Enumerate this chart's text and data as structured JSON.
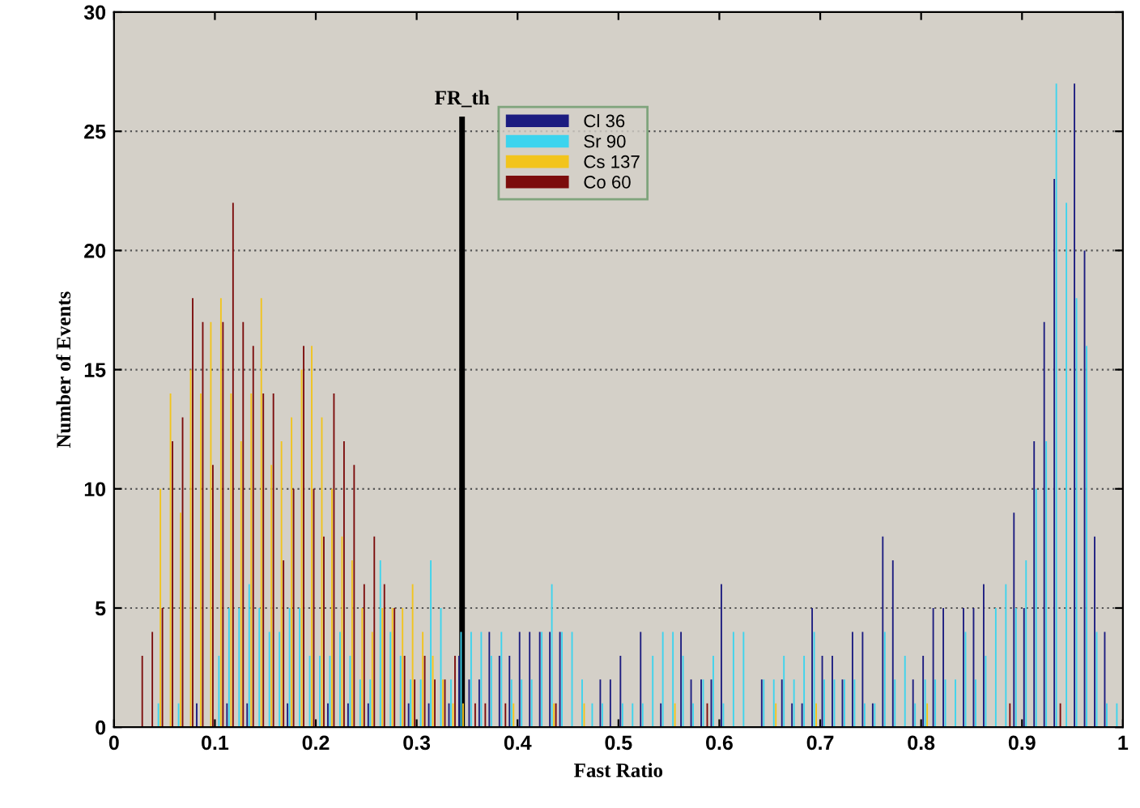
{
  "chart_data": {
    "type": "histogram",
    "xlabel": "Fast Ratio",
    "ylabel": "Number of Events",
    "bins": [
      0,
      0.01,
      0.02,
      0.03,
      0.04,
      0.05,
      0.06,
      0.07,
      0.08,
      0.09,
      0.1,
      0.11,
      0.12,
      0.13,
      0.14,
      0.15,
      0.16,
      0.17,
      0.18,
      0.19,
      0.2,
      0.21,
      0.22,
      0.23,
      0.24,
      0.25,
      0.26,
      0.27,
      0.28,
      0.29,
      0.3,
      0.31,
      0.32,
      0.33,
      0.34,
      0.35,
      0.36,
      0.37,
      0.38,
      0.39,
      0.4,
      0.41,
      0.42,
      0.43,
      0.44,
      0.45,
      0.46,
      0.47,
      0.48,
      0.49,
      0.5,
      0.51,
      0.52,
      0.53,
      0.54,
      0.55,
      0.56,
      0.57,
      0.58,
      0.59,
      0.6,
      0.61,
      0.62,
      0.63,
      0.64,
      0.65,
      0.66,
      0.67,
      0.68,
      0.69,
      0.7,
      0.71,
      0.72,
      0.73,
      0.74,
      0.75,
      0.76,
      0.77,
      0.78,
      0.79,
      0.8,
      0.81,
      0.82,
      0.83,
      0.84,
      0.85,
      0.86,
      0.87,
      0.88,
      0.89,
      0.9,
      0.91,
      0.92,
      0.93,
      0.94,
      0.95,
      0.96,
      0.97,
      0.98,
      0.99,
      1
    ],
    "series": [
      {
        "name": "Cl 36",
        "color": "#1c1c80",
        "values": [
          0,
          0,
          0,
          0,
          0,
          0,
          0,
          0,
          1,
          0,
          0,
          1,
          0,
          1,
          0,
          0,
          0,
          1,
          0,
          0,
          0,
          1,
          0,
          1,
          0,
          1,
          0,
          0,
          0,
          1,
          0,
          1,
          0,
          1,
          3,
          2,
          2,
          4,
          3,
          3,
          4,
          4,
          4,
          4,
          4,
          0,
          0,
          0,
          2,
          2,
          3,
          0,
          4,
          0,
          1,
          0,
          4,
          2,
          2,
          2,
          6,
          0,
          0,
          0,
          2,
          0,
          2,
          1,
          1,
          5,
          3,
          3,
          2,
          4,
          4,
          1,
          8,
          7,
          0,
          2,
          3,
          5,
          5,
          0,
          5,
          5,
          6,
          0,
          0,
          9,
          5,
          12,
          17,
          23,
          0,
          27,
          20,
          8,
          4,
          0
        ]
      },
      {
        "name": "Sr 90",
        "color": "#3cd4ee",
        "values": [
          0,
          0,
          0,
          0,
          1,
          0,
          1,
          0,
          0,
          0,
          3,
          5,
          5,
          6,
          5,
          4,
          4,
          5,
          5,
          3,
          3,
          3,
          4,
          3,
          2,
          2,
          7,
          4,
          3,
          2,
          2,
          7,
          5,
          2,
          4,
          4,
          4,
          3,
          4,
          2,
          2,
          2,
          4,
          6,
          4,
          4,
          2,
          1,
          1,
          0,
          1,
          1,
          1,
          3,
          4,
          4,
          3,
          1,
          2,
          3,
          1,
          4,
          4,
          0,
          2,
          2,
          3,
          2,
          3,
          4,
          2,
          2,
          2,
          2,
          1,
          1,
          4,
          2,
          3,
          1,
          2,
          2,
          2,
          2,
          4,
          2,
          3,
          5,
          6,
          5,
          7,
          10,
          12,
          27,
          22,
          18,
          16,
          4,
          1,
          1
        ]
      },
      {
        "name": "Cs 137",
        "color": "#f2c41c",
        "values": [
          0,
          0,
          0,
          0,
          10,
          14,
          9,
          15,
          14,
          17,
          18,
          14,
          12,
          14,
          18,
          11,
          12,
          13,
          15,
          16,
          13,
          10,
          8,
          7,
          5,
          4,
          5,
          5,
          5,
          6,
          4,
          3,
          2,
          1,
          1,
          0,
          0,
          0,
          0,
          1,
          0,
          0,
          0,
          1,
          0,
          0,
          1,
          0,
          0,
          0,
          0,
          0,
          0,
          0,
          0,
          1,
          0,
          0,
          0,
          0,
          0,
          0,
          0,
          0,
          0,
          1,
          0,
          0,
          0,
          1,
          0,
          0,
          0,
          0,
          0,
          0,
          0,
          0,
          0,
          0,
          1,
          0,
          0,
          0,
          0,
          0,
          0,
          0,
          0,
          0,
          0,
          0,
          0,
          0,
          0,
          0,
          0,
          0,
          0,
          0
        ]
      },
      {
        "name": "Co 60",
        "color": "#7c0c0c",
        "values": [
          0,
          0,
          3,
          4,
          5,
          12,
          13,
          18,
          17,
          11,
          17,
          22,
          17,
          16,
          14,
          14,
          7,
          10,
          16,
          10,
          8,
          14,
          12,
          11,
          6,
          8,
          6,
          5,
          3,
          2,
          3,
          2,
          2,
          3,
          0,
          1,
          1,
          0,
          1,
          0,
          0,
          0,
          0,
          1,
          0,
          0,
          0,
          0,
          0,
          0,
          0,
          0,
          0,
          0,
          0,
          0,
          0,
          0,
          1,
          0,
          0,
          0,
          0,
          0,
          0,
          0,
          0,
          0,
          0,
          0,
          0,
          0,
          0,
          0,
          0,
          0,
          0,
          0,
          0,
          0,
          0,
          0,
          0,
          0,
          0,
          0,
          0,
          0,
          1,
          0,
          0,
          0,
          0,
          1,
          0,
          0,
          0,
          0,
          0,
          0
        ]
      }
    ],
    "xlim": [
      0,
      1
    ],
    "ylim": [
      0,
      30
    ],
    "xticks": [
      0,
      0.1,
      0.2,
      0.3,
      0.4,
      0.5,
      0.6,
      0.7,
      0.8,
      0.9,
      1
    ],
    "yticks": [
      0,
      5,
      10,
      15,
      20,
      25,
      30
    ],
    "ref_lines": [
      {
        "axis": "x",
        "value": 0.345,
        "label": "FR_th",
        "color": "#000000"
      }
    ],
    "grid": "y",
    "legend": "top"
  }
}
